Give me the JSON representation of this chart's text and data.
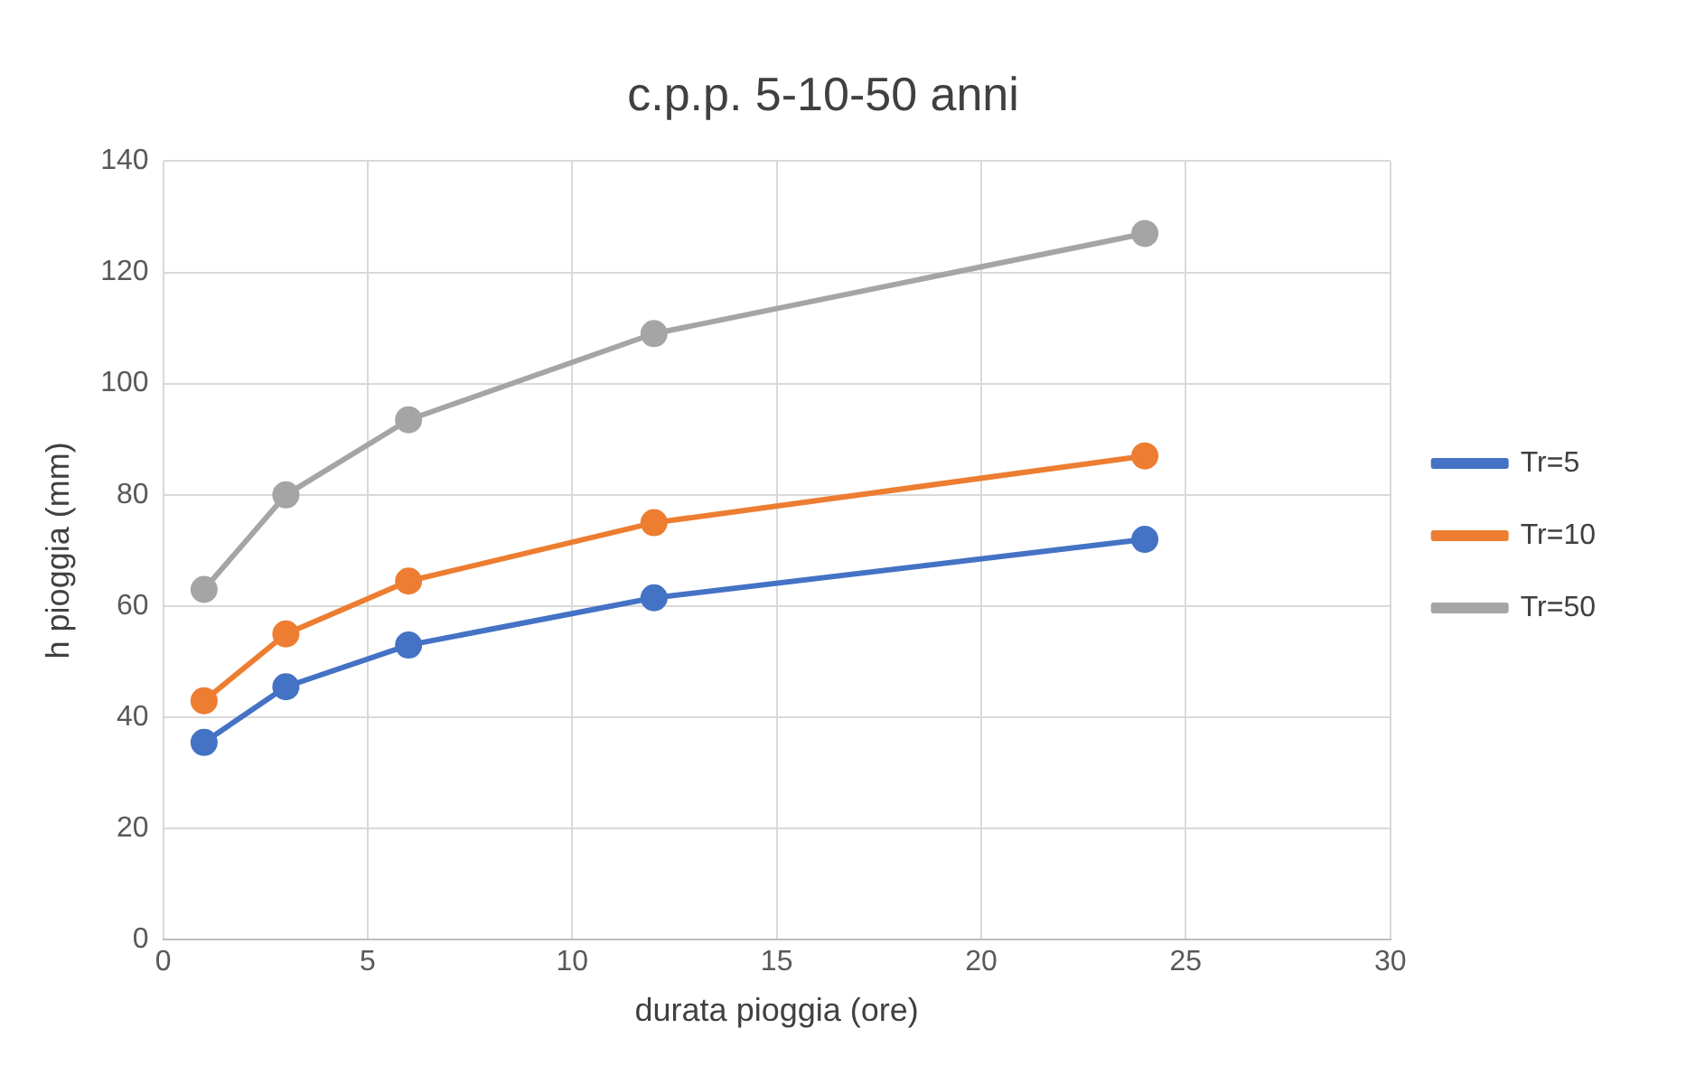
{
  "chart_data": {
    "type": "line",
    "title": "c.p.p. 5-10-50 anni",
    "xlabel": "durata pioggia (ore)",
    "ylabel": "h pioggia (mm)",
    "x": [
      1,
      3,
      6,
      12,
      24
    ],
    "series": [
      {
        "name": "Tr=5",
        "color": "#4472c4",
        "values": [
          35.5,
          45.5,
          53,
          61.5,
          72
        ]
      },
      {
        "name": "Tr=10",
        "color": "#ed7d31",
        "values": [
          43,
          55,
          64.5,
          75,
          87
        ]
      },
      {
        "name": "Tr=50",
        "color": "#a5a5a5",
        "values": [
          63,
          80,
          93.5,
          109,
          127
        ]
      }
    ],
    "xlim": [
      0,
      30
    ],
    "xticks": [
      0,
      5,
      10,
      15,
      20,
      25,
      30
    ],
    "ylim": [
      0,
      140
    ],
    "yticks": [
      0,
      20,
      40,
      60,
      80,
      100,
      120,
      140
    ],
    "grid": true,
    "legend": "right",
    "marker": "circle",
    "line_style": "solid"
  }
}
